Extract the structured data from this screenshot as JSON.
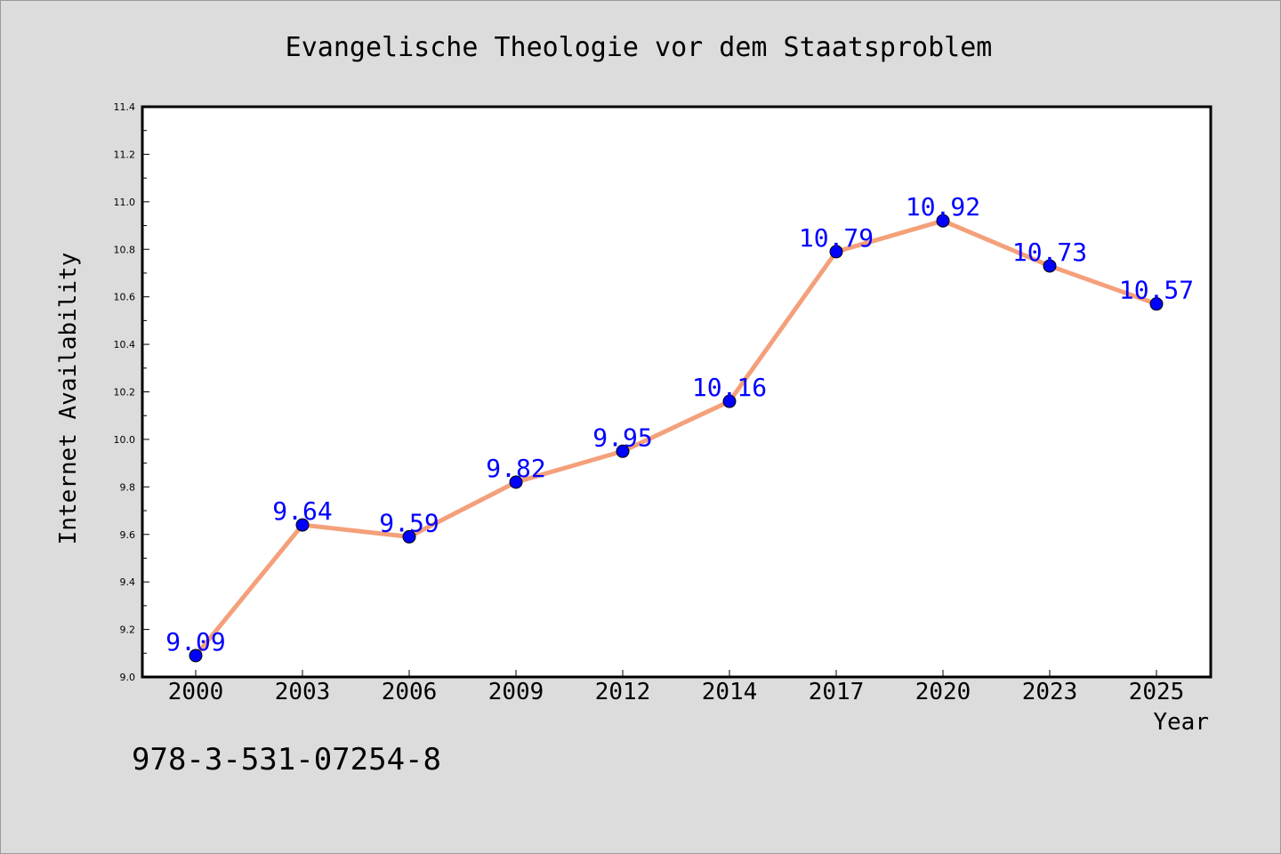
{
  "chart_data": {
    "type": "line",
    "title": "Evangelische Theologie vor dem Staatsproblem",
    "xlabel": "Year",
    "ylabel": "Internet Availability",
    "categories": [
      "2000",
      "2003",
      "2006",
      "2009",
      "2012",
      "2014",
      "2017",
      "2020",
      "2023",
      "2025"
    ],
    "series": [
      {
        "values": [
          9.09,
          9.64,
          9.59,
          9.82,
          9.95,
          10.16,
          10.79,
          10.92,
          10.73,
          10.57
        ]
      }
    ],
    "data_labels": [
      "9.09",
      "9.64",
      "9.59",
      "9.82",
      "9.95",
      "10.16",
      "10.79",
      "10.92",
      "10.73",
      "10.57"
    ],
    "ylim": [
      9.0,
      11.4
    ],
    "yticks": [
      "9.0",
      "9.2",
      "9.4",
      "9.6",
      "9.8",
      "10.0",
      "10.2",
      "10.4",
      "10.6",
      "10.8",
      "11.0",
      "11.2",
      "11.4"
    ],
    "y_minor_step": 0.1,
    "grid": false,
    "line_color": "#f4a07a",
    "marker_color": "#0000ff",
    "label_color": "#0000ff",
    "annotation": "978-3-531-07254-8"
  }
}
